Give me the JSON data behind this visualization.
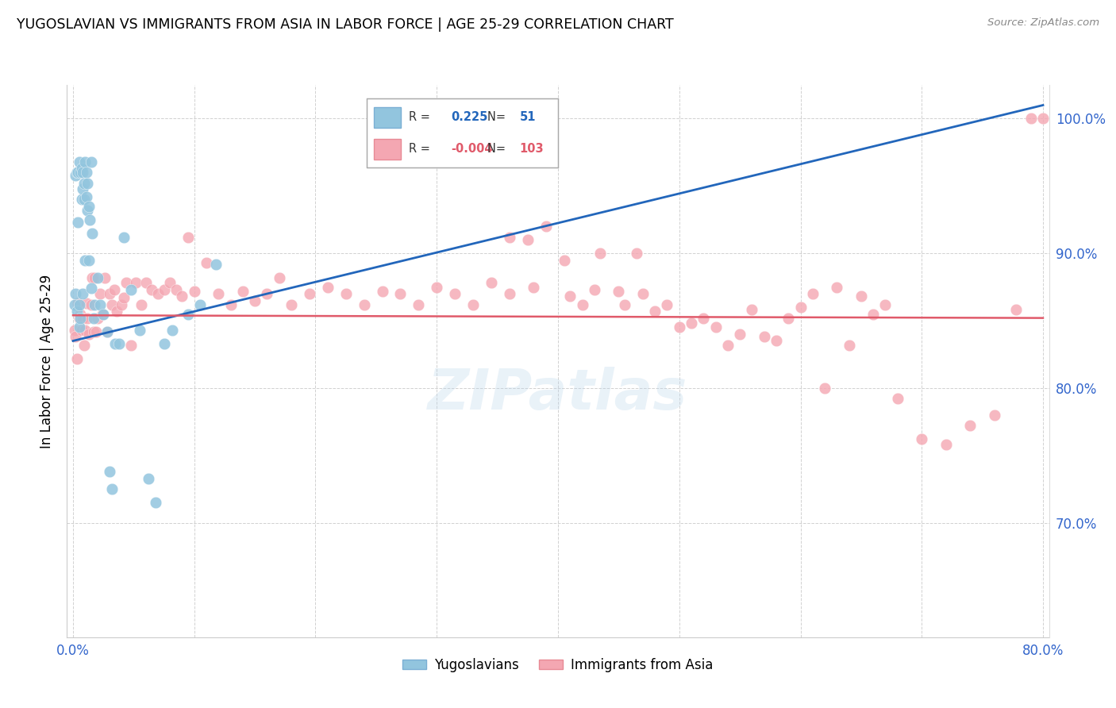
{
  "title": "YUGOSLAVIAN VS IMMIGRANTS FROM ASIA IN LABOR FORCE | AGE 25-29 CORRELATION CHART",
  "source": "Source: ZipAtlas.com",
  "ylabel": "In Labor Force | Age 25-29",
  "y_ticks_right": [
    0.7,
    0.8,
    0.9,
    1.0
  ],
  "y_ticklabels_right": [
    "70.0%",
    "80.0%",
    "90.0%",
    "100.0%"
  ],
  "xlim": [
    -0.005,
    0.805
  ],
  "ylim": [
    0.615,
    1.025
  ],
  "blue_r": "0.225",
  "blue_n": "51",
  "pink_r": "-0.004",
  "pink_n": "103",
  "legend_labels": [
    "Yugoslavians",
    "Immigrants from Asia"
  ],
  "blue_color": "#92C5DE",
  "pink_color": "#F4A7B2",
  "blue_line_color": "#2266BB",
  "pink_line_color": "#E05A6A",
  "watermark": "ZIPatlas",
  "blue_trend_x": [
    0.0,
    0.8
  ],
  "blue_trend_y": [
    0.835,
    1.01
  ],
  "pink_trend_x": [
    0.0,
    0.8
  ],
  "pink_trend_y": [
    0.854,
    0.852
  ],
  "blue_points_x": [
    0.001,
    0.002,
    0.002,
    0.003,
    0.003,
    0.004,
    0.004,
    0.005,
    0.005,
    0.005,
    0.006,
    0.006,
    0.007,
    0.007,
    0.008,
    0.008,
    0.008,
    0.009,
    0.009,
    0.01,
    0.01,
    0.011,
    0.011,
    0.012,
    0.012,
    0.013,
    0.013,
    0.014,
    0.015,
    0.015,
    0.016,
    0.017,
    0.018,
    0.02,
    0.022,
    0.025,
    0.028,
    0.03,
    0.032,
    0.035,
    0.038,
    0.042,
    0.048,
    0.055,
    0.062,
    0.068,
    0.075,
    0.082,
    0.095,
    0.105,
    0.118
  ],
  "blue_points_y": [
    0.862,
    0.87,
    0.958,
    0.96,
    0.857,
    0.96,
    0.923,
    0.968,
    0.862,
    0.845,
    0.96,
    0.852,
    0.963,
    0.94,
    0.96,
    0.948,
    0.87,
    0.952,
    0.94,
    0.968,
    0.895,
    0.96,
    0.942,
    0.952,
    0.932,
    0.895,
    0.935,
    0.925,
    0.968,
    0.874,
    0.915,
    0.852,
    0.862,
    0.882,
    0.862,
    0.855,
    0.842,
    0.738,
    0.725,
    0.833,
    0.833,
    0.912,
    0.873,
    0.843,
    0.733,
    0.715,
    0.833,
    0.843,
    0.855,
    0.862,
    0.892
  ],
  "pink_points_x": [
    0.001,
    0.002,
    0.003,
    0.004,
    0.005,
    0.006,
    0.007,
    0.008,
    0.009,
    0.01,
    0.011,
    0.012,
    0.013,
    0.015,
    0.016,
    0.017,
    0.018,
    0.019,
    0.02,
    0.022,
    0.024,
    0.026,
    0.028,
    0.03,
    0.032,
    0.034,
    0.036,
    0.04,
    0.042,
    0.044,
    0.048,
    0.052,
    0.056,
    0.06,
    0.065,
    0.07,
    0.075,
    0.08,
    0.085,
    0.09,
    0.095,
    0.1,
    0.11,
    0.12,
    0.13,
    0.14,
    0.15,
    0.16,
    0.17,
    0.18,
    0.195,
    0.21,
    0.225,
    0.24,
    0.255,
    0.27,
    0.285,
    0.3,
    0.315,
    0.33,
    0.345,
    0.36,
    0.375,
    0.39,
    0.405,
    0.42,
    0.435,
    0.45,
    0.465,
    0.48,
    0.5,
    0.52,
    0.54,
    0.56,
    0.58,
    0.6,
    0.62,
    0.64,
    0.66,
    0.68,
    0.7,
    0.72,
    0.74,
    0.76,
    0.778,
    0.79,
    0.8,
    0.36,
    0.38,
    0.41,
    0.43,
    0.455,
    0.47,
    0.49,
    0.51,
    0.53,
    0.55,
    0.57,
    0.59,
    0.61,
    0.63,
    0.65,
    0.67
  ],
  "pink_points_y": [
    0.843,
    0.838,
    0.822,
    0.863,
    0.852,
    0.855,
    0.843,
    0.852,
    0.832,
    0.843,
    0.863,
    0.852,
    0.84,
    0.862,
    0.882,
    0.842,
    0.882,
    0.842,
    0.852,
    0.87,
    0.855,
    0.882,
    0.842,
    0.87,
    0.862,
    0.873,
    0.857,
    0.862,
    0.867,
    0.878,
    0.832,
    0.878,
    0.862,
    0.878,
    0.873,
    0.87,
    0.873,
    0.878,
    0.873,
    0.868,
    0.912,
    0.872,
    0.893,
    0.87,
    0.862,
    0.872,
    0.865,
    0.87,
    0.882,
    0.862,
    0.87,
    0.875,
    0.87,
    0.862,
    0.872,
    0.87,
    0.862,
    0.875,
    0.87,
    0.862,
    0.878,
    0.912,
    0.91,
    0.92,
    0.895,
    0.862,
    0.9,
    0.872,
    0.9,
    0.857,
    0.845,
    0.852,
    0.832,
    0.858,
    0.835,
    0.86,
    0.8,
    0.832,
    0.855,
    0.792,
    0.762,
    0.758,
    0.772,
    0.78,
    0.858,
    1.0,
    1.0,
    0.87,
    0.875,
    0.868,
    0.873,
    0.862,
    0.87,
    0.862,
    0.848,
    0.845,
    0.84,
    0.838,
    0.852,
    0.87,
    0.875,
    0.868,
    0.862
  ]
}
